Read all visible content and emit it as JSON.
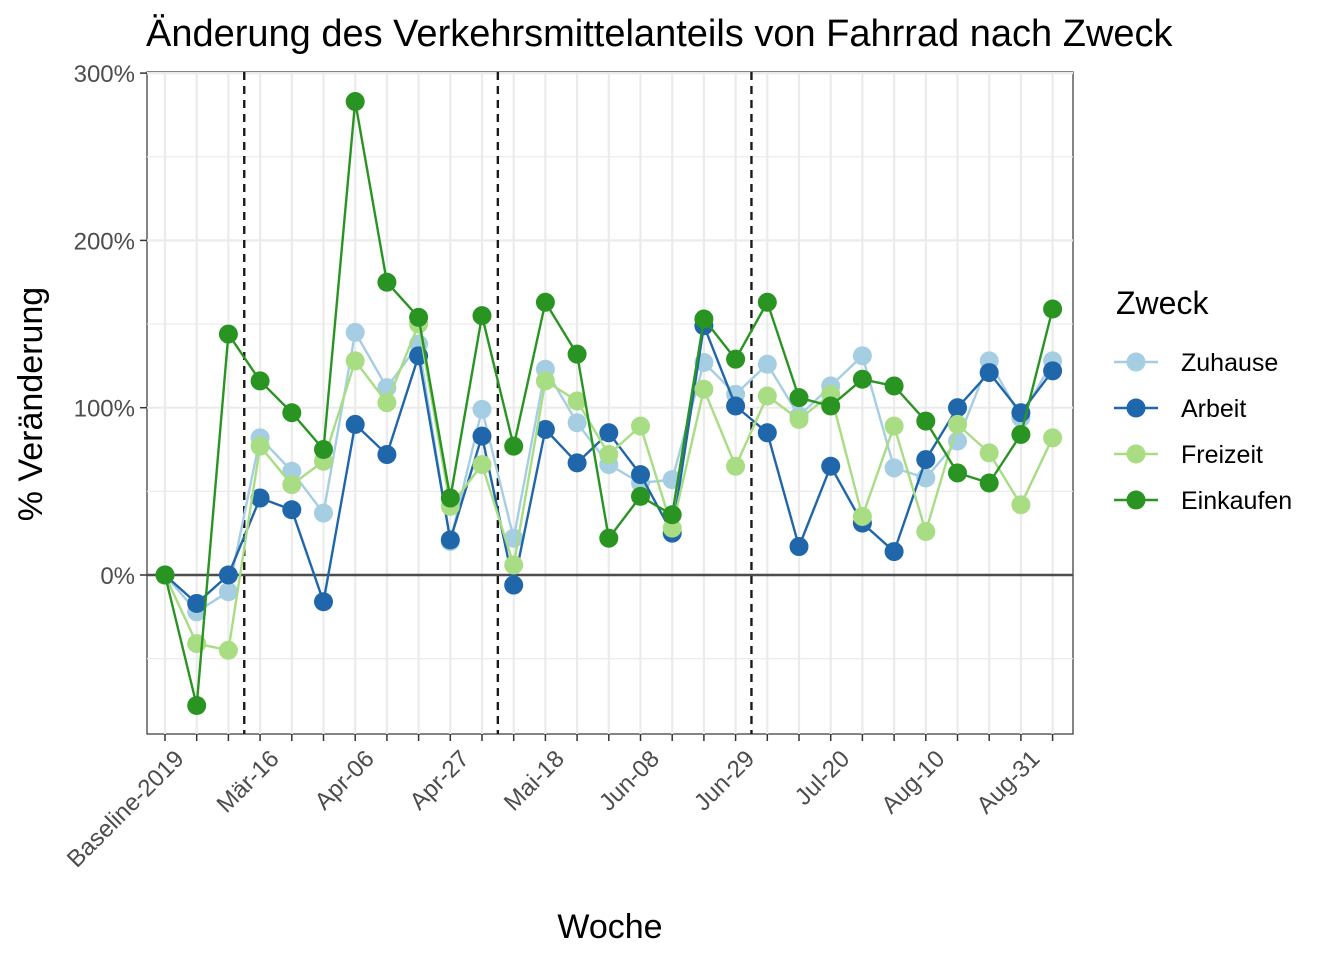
{
  "chart_data": {
    "type": "line",
    "title": "Änderung des Verkehrsmittelanteils von Fahrrad nach Zweck",
    "xlabel": "Woche",
    "ylabel": "% Veränderung",
    "x_tick_labels": [
      "Baseline-2019",
      "Mär-16",
      "Apr-06",
      "Apr-27",
      "Mai-18",
      "Jun-08",
      "Jun-29",
      "Jul-20",
      "Aug-10",
      "Aug-31"
    ],
    "x_tick_positions": [
      0,
      3,
      6,
      9,
      12,
      15,
      18,
      21,
      24,
      27
    ],
    "n_points": 29,
    "y_ticks": [
      0,
      100,
      200,
      300
    ],
    "y_tick_labels": [
      "0%",
      "100%",
      "200%",
      "300%"
    ],
    "ylim": [
      -95,
      302
    ],
    "vlines_dashed_x": [
      2.5,
      10.5,
      18.5
    ],
    "hline_y": 0,
    "grid": true,
    "legend": {
      "title": "Zweck",
      "position": "right"
    },
    "series": [
      {
        "name": "Zuhause",
        "color": "#a6cee3",
        "values": [
          0,
          -22,
          -10,
          82,
          62,
          37,
          145,
          112,
          138,
          20,
          99,
          22,
          123,
          91,
          66,
          55,
          57,
          127,
          108,
          126,
          95,
          113,
          131,
          64,
          58,
          80,
          128,
          94,
          128
        ]
      },
      {
        "name": "Arbeit",
        "color": "#1f66aa",
        "values": [
          0,
          -17,
          0,
          46,
          39,
          -16,
          90,
          72,
          131,
          21,
          83,
          -6,
          87,
          67,
          85,
          60,
          25,
          149,
          101,
          85,
          17,
          65,
          31,
          14,
          69,
          100,
          121,
          97,
          122
        ]
      },
      {
        "name": "Freizeit",
        "color": "#a8dd84",
        "values": [
          0,
          -41,
          -45,
          77,
          54,
          68,
          128,
          103,
          150,
          41,
          66,
          6,
          116,
          104,
          72,
          89,
          28,
          111,
          65,
          107,
          93,
          108,
          35,
          89,
          26,
          90,
          73,
          42,
          82
        ]
      },
      {
        "name": "Einkaufen",
        "color": "#2a9423",
        "values": [
          0,
          -78,
          144,
          116,
          97,
          75,
          283,
          175,
          154,
          46,
          155,
          77,
          163,
          132,
          22,
          47,
          36,
          153,
          129,
          163,
          106,
          101,
          117,
          113,
          92,
          61,
          55,
          84,
          159
        ]
      }
    ]
  }
}
